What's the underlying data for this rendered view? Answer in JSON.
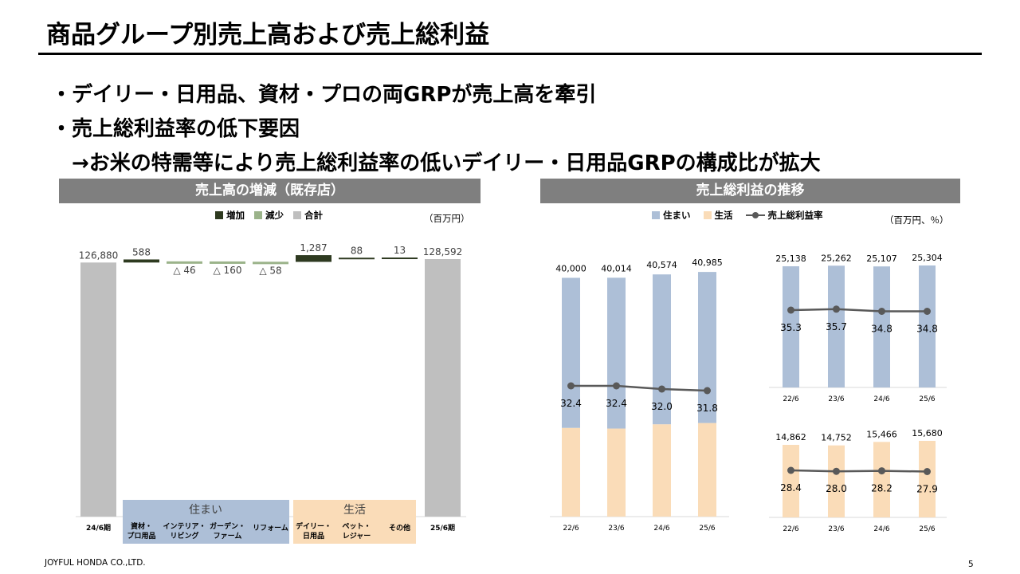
{
  "title": "商品グループ別売上高および売上総利益",
  "bullets": [
    "・デイリー・日用品、資材・プロの両GRPが売上高を牽引",
    "・売上総利益率の低下要因",
    "　→お米の特需等により売上総利益率の低いデイリー・日用品GRPの構成比が拡大"
  ],
  "left_panel": {
    "header": "売上高の増減（既存店）",
    "legend": [
      "増加",
      "減少",
      "合計"
    ],
    "unit": "（百万円）",
    "group_labels": [
      "住まい",
      "生活"
    ]
  },
  "right_panel": {
    "header": "売上総利益の推移",
    "legend": [
      "住まい",
      "生活",
      "売上総利益率"
    ],
    "unit": "（百万円、％）"
  },
  "colors": {
    "increase": "#2e3a20",
    "decrease": "#9bb38a",
    "total": "#bfbfbf",
    "sumai": "#adbfd7",
    "seikatsu": "#fadcb8",
    "rate_line": "#595959",
    "header_bg": "#7f7f7f"
  },
  "chart_data": [
    {
      "type": "bar",
      "subtype": "waterfall",
      "title": "売上高の増減（既存店）",
      "categories": [
        "24/6期",
        "資材・プロ用品",
        "インテリア・リビング",
        "ガーデン・ファーム",
        "リフォーム",
        "デイリー・日用品",
        "ペット・レジャー",
        "その他",
        "25/6期"
      ],
      "values": [
        126880,
        588,
        -46,
        -160,
        -58,
        1287,
        88,
        13,
        128592
      ],
      "kinds": [
        "total",
        "increase",
        "decrease",
        "decrease",
        "decrease",
        "increase",
        "increase",
        "increase",
        "total"
      ],
      "data_labels": [
        "126,880",
        "588",
        "△ 46",
        "△ 160",
        "△ 58",
        "1,287",
        "88",
        "13",
        "128,592"
      ],
      "groups": [
        {
          "name": "住まい",
          "categories": [
            "資材・プロ用品",
            "インテリア・リビング",
            "ガーデン・ファーム",
            "リフォーム"
          ]
        },
        {
          "name": "生活",
          "categories": [
            "デイリー・日用品",
            "ペット・レジャー",
            "その他"
          ]
        }
      ],
      "legend": [
        "増加",
        "減少",
        "合計"
      ],
      "unit": "百万円"
    },
    {
      "type": "bar",
      "subtype": "stacked_with_line",
      "title": "売上総利益の推移",
      "categories": [
        "22/6",
        "23/6",
        "24/6",
        "25/6"
      ],
      "series": [
        {
          "name": "住まい",
          "values": [
            25138,
            25262,
            25107,
            25304
          ]
        },
        {
          "name": "生活",
          "values": [
            14862,
            14752,
            15466,
            15680
          ]
        },
        {
          "name": "売上総利益率",
          "kind": "line",
          "values": [
            32.4,
            32.4,
            32.0,
            31.8
          ]
        }
      ],
      "totals": [
        40000,
        40014,
        40574,
        40985
      ],
      "total_labels": [
        "40,000",
        "40,014",
        "40,574",
        "40,985"
      ],
      "rate_labels": [
        "32.4",
        "32.4",
        "32.0",
        "31.8"
      ]
    },
    {
      "type": "bar",
      "subtype": "bar_with_line",
      "categories": [
        "22/6",
        "23/6",
        "24/6",
        "25/6"
      ],
      "series": [
        {
          "name": "住まい",
          "values": [
            25138,
            25262,
            25107,
            25304
          ]
        },
        {
          "name": "売上総利益率",
          "kind": "line",
          "values": [
            35.3,
            35.7,
            34.8,
            34.8
          ]
        }
      ],
      "value_labels": [
        "25,138",
        "25,262",
        "25,107",
        "25,304"
      ],
      "rate_labels": [
        "35.3",
        "35.7",
        "34.8",
        "34.8"
      ]
    },
    {
      "type": "bar",
      "subtype": "bar_with_line",
      "categories": [
        "22/6",
        "23/6",
        "24/6",
        "25/6"
      ],
      "series": [
        {
          "name": "生活",
          "values": [
            14862,
            14752,
            15466,
            15680
          ]
        },
        {
          "name": "売上総利益率",
          "kind": "line",
          "values": [
            28.4,
            28.0,
            28.2,
            27.9
          ]
        }
      ],
      "value_labels": [
        "14,862",
        "14,752",
        "15,466",
        "15,680"
      ],
      "rate_labels": [
        "28.4",
        "28.0",
        "28.2",
        "27.9"
      ]
    }
  ],
  "footer": "JOYFUL HONDA CO.,LTD.",
  "page_number": "5"
}
